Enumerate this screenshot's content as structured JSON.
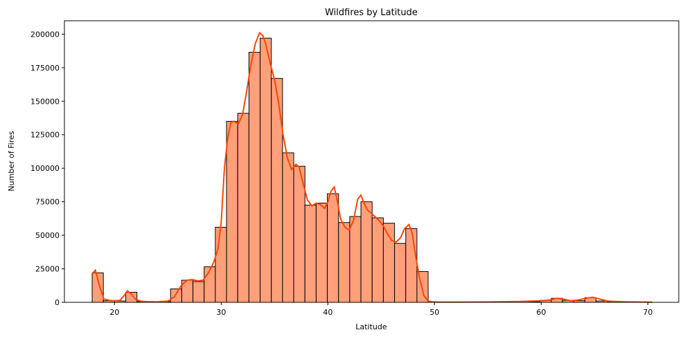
{
  "chart_data": {
    "type": "bar",
    "subtype": "histogram-with-kde",
    "title": "Wildfires by Latitude",
    "xlabel": "Latitude",
    "ylabel": "Number of Fires",
    "xlim": [
      15.3,
      72.9
    ],
    "ylim": [
      0,
      210000
    ],
    "x_ticks": [
      20,
      30,
      40,
      50,
      60,
      70
    ],
    "y_ticks": [
      0,
      25000,
      50000,
      75000,
      100000,
      125000,
      150000,
      175000,
      200000
    ],
    "grid": false,
    "legend": null,
    "bin_start": 17.9,
    "bin_width": 1.05,
    "bin_count": 50,
    "values": [
      22000,
      1200,
      1000,
      7500,
      600,
      300,
      500,
      10000,
      16500,
      15500,
      26500,
      56000,
      135000,
      141000,
      186500,
      197000,
      167000,
      111500,
      101500,
      72500,
      74000,
      81000,
      59500,
      64000,
      75000,
      63000,
      59000,
      44000,
      55000,
      23000,
      300,
      100,
      100,
      100,
      100,
      100,
      200,
      300,
      400,
      500,
      1500,
      3000,
      1500,
      1200,
      3500,
      1000,
      500,
      300,
      200,
      100
    ],
    "kde": {
      "x": [
        17.9,
        18.2,
        18.6,
        19.0,
        19.5,
        20.0,
        20.5,
        20.9,
        21.2,
        21.6,
        22.0,
        22.5,
        23.0,
        24.0,
        25.0,
        25.6,
        26.2,
        26.8,
        27.3,
        27.8,
        28.3,
        28.8,
        29.3,
        29.7,
        30.0,
        30.3,
        30.6,
        30.9,
        31.2,
        31.6,
        32.0,
        32.4,
        32.8,
        33.2,
        33.6,
        33.9,
        34.2,
        34.6,
        35.0,
        35.4,
        35.8,
        36.2,
        36.6,
        37.0,
        37.3,
        37.7,
        38.1,
        38.5,
        38.9,
        39.3,
        39.7,
        40.0,
        40.3,
        40.6,
        40.9,
        41.2,
        41.6,
        42.0,
        42.4,
        42.8,
        43.1,
        43.4,
        43.7,
        44.0,
        44.4,
        44.8,
        45.2,
        45.6,
        46.0,
        46.4,
        46.8,
        47.2,
        47.6,
        47.9,
        48.2,
        48.6,
        49.0,
        49.4,
        49.8,
        50.5,
        52.0,
        55.0,
        58.0,
        60.0,
        60.8,
        61.5,
        62.2,
        62.8,
        63.5,
        64.2,
        64.8,
        65.5,
        66.2,
        67.0,
        68.0,
        69.0,
        70.4
      ],
      "y": [
        21000,
        24000,
        12000,
        2500,
        1500,
        1200,
        1500,
        5000,
        8500,
        6000,
        2000,
        800,
        500,
        400,
        900,
        4000,
        12000,
        16500,
        17000,
        16000,
        16500,
        22000,
        30000,
        40000,
        60000,
        100000,
        122000,
        134000,
        135000,
        133000,
        140000,
        158000,
        178000,
        193000,
        201000,
        199000,
        192000,
        178000,
        166000,
        148000,
        125000,
        108000,
        99000,
        103000,
        101000,
        88000,
        76000,
        72000,
        74000,
        73000,
        70000,
        75000,
        83000,
        86000,
        75000,
        62000,
        56000,
        54000,
        61000,
        77000,
        80000,
        74000,
        69000,
        67000,
        64000,
        61000,
        57000,
        51000,
        46000,
        45000,
        48000,
        55000,
        58000,
        52000,
        36000,
        18000,
        5000,
        1000,
        400,
        200,
        200,
        300,
        600,
        1200,
        1800,
        3000,
        2200,
        1200,
        1800,
        3000,
        3800,
        2500,
        1000,
        600,
        400,
        300,
        100
      ]
    },
    "bar_color": "#ffa07a",
    "bar_edge_color": "#000000",
    "kde_color": "#ff4500"
  }
}
